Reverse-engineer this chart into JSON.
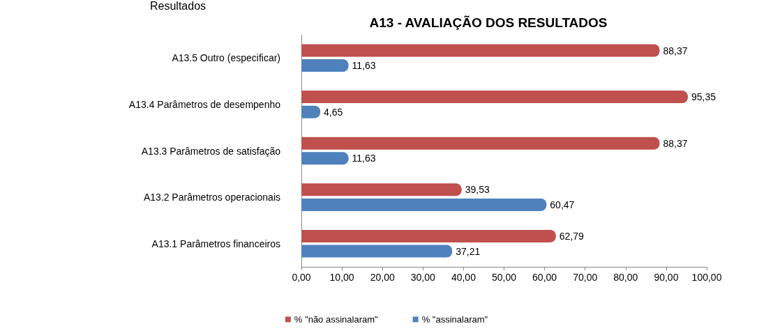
{
  "chart_data": {
    "type": "bar",
    "orientation": "horizontal",
    "title": "A13 - AVALIAÇÃO DOS RESULTADOS",
    "annotations": [
      "Resultados"
    ],
    "categories": [
      "A13.5 Outro (especificar)",
      "A13.4 Parâmetros de desempenho",
      "A13.3 Parâmetros de satisfação",
      "A13.2 Parâmetros operacionais",
      "A13.1 Parâmetros financeiros"
    ],
    "series": [
      {
        "name": "% \"não assinalaram\"",
        "color": "#c0504d",
        "values": [
          88.37,
          95.35,
          88.37,
          39.53,
          62.79
        ],
        "value_labels": [
          "88,37",
          "95,35",
          "88,37",
          "39,53",
          "62,79"
        ]
      },
      {
        "name": "% \"assinalaram\"",
        "color": "#4f81bd",
        "values": [
          11.63,
          4.65,
          11.63,
          60.47,
          37.21
        ],
        "value_labels": [
          "11,63",
          "4,65",
          "11,63",
          "60,47",
          "37,21"
        ]
      }
    ],
    "xlim": [
      0,
      100
    ],
    "xticks": [
      {
        "value": 0,
        "label": "0,00"
      },
      {
        "value": 10,
        "label": "10,00"
      },
      {
        "value": 20,
        "label": "20,00"
      },
      {
        "value": 30,
        "label": "30,00"
      },
      {
        "value": 40,
        "label": "40,00"
      },
      {
        "value": 50,
        "label": "50,00"
      },
      {
        "value": 60,
        "label": "60,00"
      },
      {
        "value": 70,
        "label": "70,00"
      },
      {
        "value": 80,
        "label": "80,00"
      },
      {
        "value": 90,
        "label": "90,00"
      },
      {
        "value": 100,
        "label": "100,00"
      }
    ],
    "grid": false,
    "legend": "bottom"
  }
}
